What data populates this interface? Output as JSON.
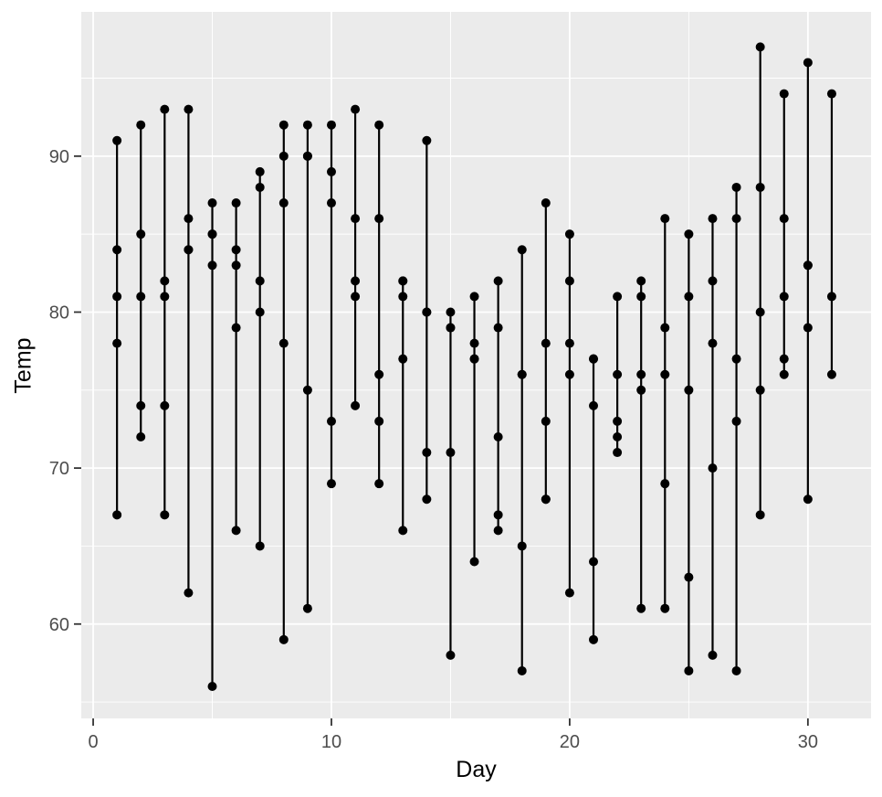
{
  "chart_data": {
    "type": "scatter",
    "title": "",
    "xlabel": "Day",
    "ylabel": "Temp",
    "xlim": [
      -0.5,
      32.65
    ],
    "ylim": [
      53.95,
      99.25
    ],
    "x_major_ticks": [
      0,
      10,
      20,
      30
    ],
    "x_minor_ticks": [
      5,
      15,
      25
    ],
    "y_major_ticks": [
      60,
      70,
      80,
      90
    ],
    "y_minor_ticks": [
      55,
      65,
      75,
      85,
      95
    ],
    "grid": "major+minor on grey panel",
    "legend": "none",
    "mark": "vertical line per day connecting all temps, point at each temp",
    "style": {
      "panel_bg": "#EBEBEB",
      "grid_color": "#FFFFFF",
      "point_color": "#000000",
      "line_color": "#000000",
      "tick_label_color": "#4D4D4D",
      "axis_title_color": "#000000",
      "tick_mark_color": "#333333"
    },
    "days": [
      {
        "day": 1,
        "temps": [
          67,
          78,
          84,
          81,
          91
        ]
      },
      {
        "day": 2,
        "temps": [
          72,
          74,
          85,
          81,
          92
        ]
      },
      {
        "day": 3,
        "temps": [
          74,
          67,
          81,
          82,
          93
        ]
      },
      {
        "day": 4,
        "temps": [
          62,
          84,
          84,
          86,
          93
        ]
      },
      {
        "day": 5,
        "temps": [
          56,
          85,
          83,
          85,
          87
        ]
      },
      {
        "day": 6,
        "temps": [
          66,
          79,
          83,
          87,
          84
        ]
      },
      {
        "day": 7,
        "temps": [
          65,
          82,
          88,
          89,
          80
        ]
      },
      {
        "day": 8,
        "temps": [
          59,
          87,
          92,
          90,
          78
        ]
      },
      {
        "day": 9,
        "temps": [
          61,
          90,
          92,
          90,
          75
        ]
      },
      {
        "day": 10,
        "temps": [
          69,
          87,
          89,
          92,
          73
        ]
      },
      {
        "day": 11,
        "temps": [
          74,
          93,
          82,
          86,
          81
        ]
      },
      {
        "day": 12,
        "temps": [
          69,
          92,
          73,
          86,
          76
        ]
      },
      {
        "day": 13,
        "temps": [
          66,
          82,
          81,
          82,
          77
        ]
      },
      {
        "day": 14,
        "temps": [
          68,
          80,
          91,
          80,
          71
        ]
      },
      {
        "day": 15,
        "temps": [
          58,
          79,
          80,
          79,
          71
        ]
      },
      {
        "day": 16,
        "temps": [
          64,
          77,
          81,
          77,
          78
        ]
      },
      {
        "day": 17,
        "temps": [
          66,
          72,
          82,
          79,
          67
        ]
      },
      {
        "day": 18,
        "temps": [
          57,
          65,
          84,
          76,
          76
        ]
      },
      {
        "day": 19,
        "temps": [
          68,
          73,
          87,
          78,
          68
        ]
      },
      {
        "day": 20,
        "temps": [
          62,
          76,
          85,
          78,
          82
        ]
      },
      {
        "day": 21,
        "temps": [
          59,
          77,
          74,
          77,
          64
        ]
      },
      {
        "day": 22,
        "temps": [
          73,
          76,
          81,
          72,
          71
        ]
      },
      {
        "day": 23,
        "temps": [
          61,
          76,
          82,
          75,
          81
        ]
      },
      {
        "day": 24,
        "temps": [
          61,
          76,
          86,
          79,
          69
        ]
      },
      {
        "day": 25,
        "temps": [
          57,
          75,
          85,
          81,
          63
        ]
      },
      {
        "day": 26,
        "temps": [
          58,
          78,
          82,
          86,
          70
        ]
      },
      {
        "day": 27,
        "temps": [
          57,
          73,
          86,
          88,
          77
        ]
      },
      {
        "day": 28,
        "temps": [
          67,
          80,
          88,
          97,
          75
        ]
      },
      {
        "day": 29,
        "temps": [
          81,
          77,
          86,
          94,
          76
        ]
      },
      {
        "day": 30,
        "temps": [
          79,
          83,
          83,
          96,
          68
        ]
      },
      {
        "day": 31,
        "temps": [
          76,
          81,
          94
        ]
      }
    ]
  }
}
